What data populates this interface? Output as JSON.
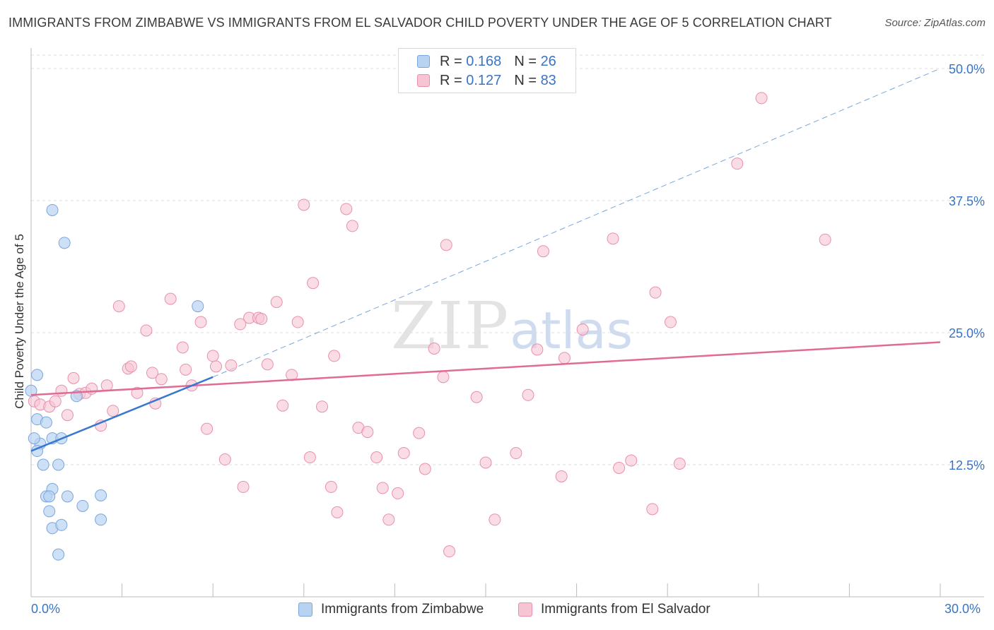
{
  "title": "IMMIGRANTS FROM ZIMBABWE VS IMMIGRANTS FROM EL SALVADOR CHILD POVERTY UNDER THE AGE OF 5 CORRELATION CHART",
  "source": "Source: ZipAtlas.com",
  "watermark": {
    "zip": "ZIP",
    "atlas": "atlas"
  },
  "legend": {
    "series1": {
      "r_label": "R = ",
      "r_value": "0.168",
      "n_label": "N = ",
      "n_value": "26"
    },
    "series2": {
      "r_label": "R = ",
      "r_value": "0.127",
      "n_label": "N = ",
      "n_value": "83"
    }
  },
  "colors": {
    "zimbabwe_fill": "#b8d3f2",
    "zimbabwe_stroke": "#7aa6dc",
    "zimbabwe_line": "#3a78d0",
    "elsalvador_fill": "#f7c4d4",
    "elsalvador_stroke": "#e98fae",
    "elsalvador_line": "#e06b96",
    "axis_label": "#3a74c4",
    "grid": "#dcdcdc"
  },
  "chart_data": {
    "type": "scatter",
    "title": "IMMIGRANTS FROM ZIMBABWE VS IMMIGRANTS FROM EL SALVADOR CHILD POVERTY UNDER THE AGE OF 5 CORRELATION CHART",
    "xlabel": "",
    "ylabel": "Child Poverty Under the Age of 5",
    "xlim": [
      0,
      30
    ],
    "ylim": [
      0,
      50
    ],
    "x_tick_labels": [
      "0.0%",
      "30.0%"
    ],
    "y_ticks": [
      12.5,
      25.0,
      37.5,
      50.0
    ],
    "y_tick_labels": [
      "12.5%",
      "25.0%",
      "37.5%",
      "50.0%"
    ],
    "grid": true,
    "legend_position": "top-center",
    "series": [
      {
        "name": "Immigrants from Zimbabwe",
        "r": 0.168,
        "n": 26,
        "trend": {
          "x": [
            0,
            6
          ],
          "y": [
            13.8,
            20.8
          ],
          "extended_to": [
            30,
            50.0
          ]
        },
        "points": [
          [
            0.0,
            19.5
          ],
          [
            0.2,
            21.0
          ],
          [
            0.3,
            14.5
          ],
          [
            0.1,
            15.0
          ],
          [
            0.2,
            16.8
          ],
          [
            0.5,
            16.5
          ],
          [
            0.4,
            12.5
          ],
          [
            0.2,
            13.8
          ],
          [
            0.7,
            15.0
          ],
          [
            0.9,
            12.5
          ],
          [
            1.0,
            15.0
          ],
          [
            1.5,
            19.0
          ],
          [
            0.7,
            10.2
          ],
          [
            0.5,
            9.5
          ],
          [
            0.6,
            8.1
          ],
          [
            0.7,
            6.5
          ],
          [
            1.0,
            6.8
          ],
          [
            1.2,
            9.5
          ],
          [
            1.7,
            8.6
          ],
          [
            2.3,
            9.6
          ],
          [
            2.3,
            7.3
          ],
          [
            0.9,
            4.0
          ],
          [
            0.7,
            36.6
          ],
          [
            1.1,
            33.5
          ],
          [
            5.5,
            27.5
          ],
          [
            0.6,
            9.5
          ]
        ]
      },
      {
        "name": "Immigrants from El Salvador",
        "r": 0.127,
        "n": 83,
        "trend": {
          "x": [
            0,
            30
          ],
          "y": [
            19.1,
            24.1
          ]
        },
        "points": [
          [
            0.1,
            18.5
          ],
          [
            0.3,
            18.2
          ],
          [
            0.6,
            18.0
          ],
          [
            0.8,
            18.5
          ],
          [
            1.0,
            19.5
          ],
          [
            1.2,
            17.2
          ],
          [
            1.4,
            20.7
          ],
          [
            1.6,
            19.2
          ],
          [
            1.8,
            19.3
          ],
          [
            2.0,
            19.7
          ],
          [
            2.3,
            16.2
          ],
          [
            2.5,
            20.0
          ],
          [
            2.7,
            17.6
          ],
          [
            2.9,
            27.5
          ],
          [
            3.2,
            21.6
          ],
          [
            3.3,
            21.8
          ],
          [
            3.5,
            19.3
          ],
          [
            3.8,
            25.2
          ],
          [
            4.0,
            21.2
          ],
          [
            4.1,
            18.3
          ],
          [
            4.3,
            20.6
          ],
          [
            4.6,
            28.2
          ],
          [
            5.0,
            23.6
          ],
          [
            5.1,
            21.5
          ],
          [
            5.3,
            20.0
          ],
          [
            5.6,
            26.0
          ],
          [
            5.8,
            15.9
          ],
          [
            6.0,
            22.8
          ],
          [
            6.1,
            21.8
          ],
          [
            6.4,
            13.0
          ],
          [
            6.6,
            21.9
          ],
          [
            6.9,
            25.8
          ],
          [
            7.0,
            10.4
          ],
          [
            7.2,
            26.4
          ],
          [
            7.5,
            26.4
          ],
          [
            7.6,
            26.3
          ],
          [
            7.8,
            22.0
          ],
          [
            8.1,
            27.9
          ],
          [
            8.3,
            18.1
          ],
          [
            8.6,
            21.0
          ],
          [
            8.8,
            26.0
          ],
          [
            9.0,
            37.1
          ],
          [
            9.2,
            13.2
          ],
          [
            9.3,
            29.7
          ],
          [
            9.6,
            18.0
          ],
          [
            9.9,
            10.4
          ],
          [
            10.0,
            22.8
          ],
          [
            10.1,
            8.0
          ],
          [
            10.4,
            36.7
          ],
          [
            10.6,
            35.1
          ],
          [
            10.8,
            16.0
          ],
          [
            11.1,
            15.6
          ],
          [
            11.4,
            13.2
          ],
          [
            11.6,
            10.3
          ],
          [
            11.8,
            7.3
          ],
          [
            12.1,
            9.8
          ],
          [
            12.3,
            13.6
          ],
          [
            12.8,
            15.5
          ],
          [
            13.0,
            12.1
          ],
          [
            13.3,
            23.5
          ],
          [
            13.6,
            20.8
          ],
          [
            13.7,
            33.3
          ],
          [
            13.8,
            4.3
          ],
          [
            14.7,
            18.9
          ],
          [
            15.0,
            12.7
          ],
          [
            15.3,
            7.3
          ],
          [
            16.0,
            13.6
          ],
          [
            16.4,
            19.1
          ],
          [
            16.7,
            23.4
          ],
          [
            16.9,
            32.7
          ],
          [
            17.5,
            11.4
          ],
          [
            17.6,
            22.6
          ],
          [
            18.2,
            25.3
          ],
          [
            19.2,
            33.9
          ],
          [
            19.4,
            12.2
          ],
          [
            19.8,
            12.9
          ],
          [
            20.5,
            8.3
          ],
          [
            20.6,
            28.8
          ],
          [
            21.1,
            26.0
          ],
          [
            21.4,
            12.6
          ],
          [
            23.3,
            41.0
          ],
          [
            24.1,
            47.2
          ],
          [
            26.2,
            33.8
          ]
        ]
      }
    ]
  },
  "bottom_legend": {
    "series1": "Immigrants from Zimbabwe",
    "series2": "Immigrants from El Salvador"
  }
}
